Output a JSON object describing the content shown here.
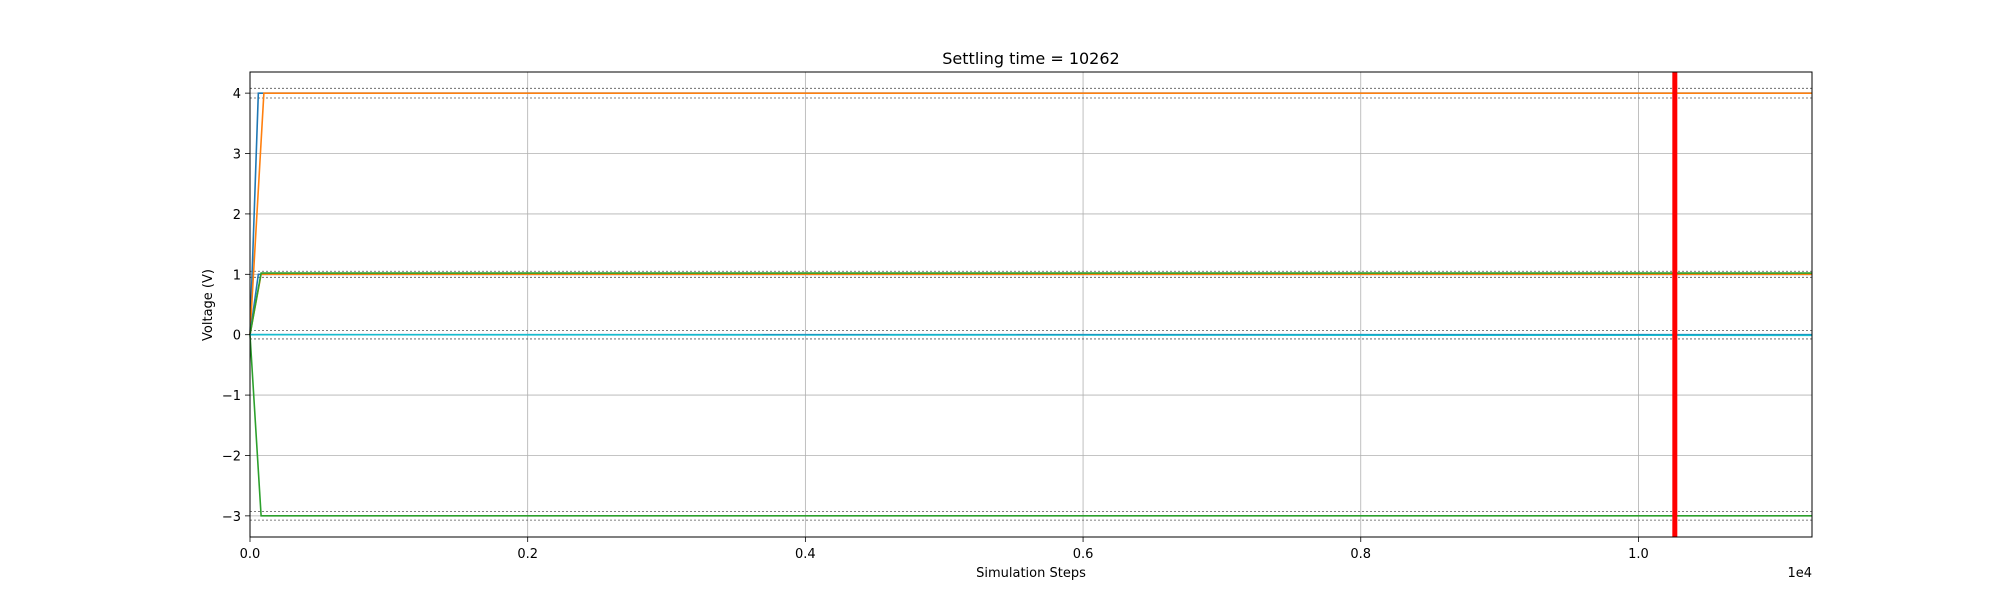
{
  "chart_data": {
    "type": "line",
    "title": "Settling time = 10262",
    "xlabel": "Simulation Steps",
    "ylabel": "Voltage (V)",
    "x_offset_label": "1e4",
    "xlim": [
      0,
      11250
    ],
    "ylim": [
      -3.35,
      4.35
    ],
    "xticks": [
      0,
      2000,
      4000,
      6000,
      8000,
      10000
    ],
    "xtick_labels": [
      "0.0",
      "0.2",
      "0.4",
      "0.6",
      "0.8",
      "1.0"
    ],
    "yticks": [
      -3,
      -2,
      -1,
      0,
      1,
      2,
      3,
      4
    ],
    "ytick_labels": [
      "−3",
      "−2",
      "−1",
      "0",
      "1",
      "2",
      "3",
      "4"
    ],
    "grid": true,
    "settling_marker": {
      "x": 10262,
      "color": "#ff0000"
    },
    "tolerance_bands": [
      {
        "lower": 3.92,
        "upper": 4.08
      },
      {
        "lower": 0.95,
        "upper": 1.05
      },
      {
        "lower": -0.07,
        "upper": 0.07
      },
      {
        "lower": -3.07,
        "upper": -2.93
      }
    ],
    "series": [
      {
        "color": "#1f77b4",
        "x": [
          0,
          60,
          11250
        ],
        "y": [
          0,
          4.0,
          4.0
        ]
      },
      {
        "color": "#ff7f0e",
        "x": [
          0,
          100,
          11250
        ],
        "y": [
          0,
          4.0,
          4.0
        ]
      },
      {
        "color": "#1f77b4",
        "x": [
          0,
          60,
          11250
        ],
        "y": [
          0,
          1.0,
          1.0
        ]
      },
      {
        "color": "#ff7f0e",
        "x": [
          0,
          80,
          11250
        ],
        "y": [
          0,
          1.0,
          1.0
        ]
      },
      {
        "color": "#2ca02c",
        "x": [
          0,
          80,
          11250
        ],
        "y": [
          0,
          1.02,
          1.02
        ]
      },
      {
        "color": "#2ca02c",
        "x": [
          0,
          80,
          11250
        ],
        "y": [
          0,
          -3.0,
          -3.0
        ]
      },
      {
        "color": "#1f77b4",
        "x": [
          0,
          11250
        ],
        "y": [
          0,
          0
        ]
      },
      {
        "color": "#17becf",
        "x": [
          0,
          11250
        ],
        "y": [
          0,
          -0.01
        ]
      }
    ]
  }
}
